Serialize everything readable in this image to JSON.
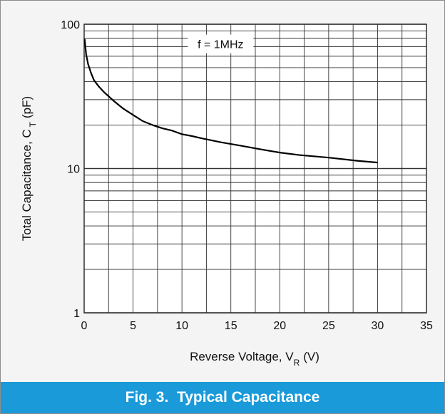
{
  "chart_data": {
    "type": "line",
    "title": "",
    "xlabel": {
      "main": "Reverse Voltage, V",
      "sub": "R",
      "unit": "(V)"
    },
    "ylabel": {
      "main": "Total Capacitance, C",
      "sub": "T",
      "unit": "(pF)"
    },
    "x_scale": "linear",
    "y_scale": "log",
    "xlim": [
      0,
      35
    ],
    "ylim": [
      1,
      100
    ],
    "x_ticks": [
      "0",
      "5",
      "10",
      "15",
      "20",
      "25",
      "30",
      "35"
    ],
    "y_ticks": [
      "1",
      "10",
      "100"
    ],
    "grid": true,
    "annotation": "f = 1MHz",
    "series": [
      {
        "x": [
          0.05,
          0.2,
          0.4,
          0.7,
          1,
          1.5,
          2,
          3,
          4,
          5,
          6,
          7,
          8,
          9,
          10,
          11,
          12,
          14,
          16,
          18,
          20,
          22,
          25,
          28,
          30
        ],
        "y": [
          79,
          62,
          53,
          46,
          41,
          37,
          34,
          29.5,
          26,
          23.5,
          21.3,
          20,
          19,
          18.3,
          17.3,
          16.8,
          16.2,
          15.2,
          14.4,
          13.6,
          12.9,
          12.4,
          11.9,
          11.3,
          11.0
        ]
      }
    ]
  },
  "caption": "Fig. 3.  Typical Capacitance"
}
